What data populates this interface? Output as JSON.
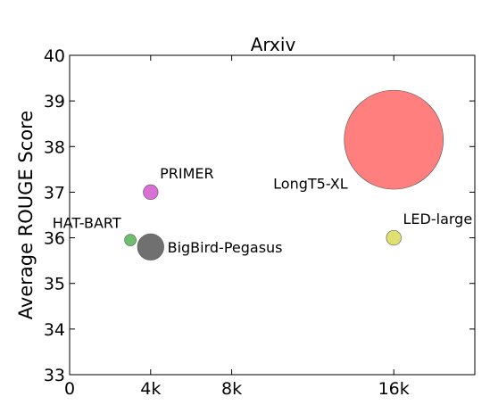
{
  "chart_data": {
    "type": "scatter",
    "title": "Arxiv",
    "xlabel": "",
    "ylabel": "Average ROUGE Score",
    "xlim": [
      0,
      20000
    ],
    "ylim": [
      33,
      40
    ],
    "x_ticks": [
      {
        "value": 0,
        "label": "0"
      },
      {
        "value": 4000,
        "label": "4k"
      },
      {
        "value": 8000,
        "label": "8k"
      },
      {
        "value": 16000,
        "label": "16k"
      }
    ],
    "y_ticks": [
      {
        "value": 33,
        "label": "33"
      },
      {
        "value": 34,
        "label": "34"
      },
      {
        "value": 35,
        "label": "35"
      },
      {
        "value": 36,
        "label": "36"
      },
      {
        "value": 37,
        "label": "37"
      },
      {
        "value": 38,
        "label": "38"
      },
      {
        "value": 39,
        "label": "39"
      },
      {
        "value": 40,
        "label": "40"
      }
    ],
    "grid": false,
    "legend": "none",
    "points": [
      {
        "label": "PRIMER",
        "x": 4000,
        "y": 37.0,
        "size": 0.45,
        "color": "#DA70D6",
        "label_pos": "above-right"
      },
      {
        "label": "HAT-BART",
        "x": 3000,
        "y": 35.95,
        "size": 0.35,
        "color": "#6DBF6D",
        "label_pos": "above-left"
      },
      {
        "label": "BigBird-Pegasus",
        "x": 4000,
        "y": 35.8,
        "size": 0.8,
        "color": "#707070",
        "label_pos": "right"
      },
      {
        "label": "LongT5-XL",
        "x": 16000,
        "y": 38.15,
        "size": 3.0,
        "color": "#FF7F7F",
        "label_pos": "left"
      },
      {
        "label": "LED-large",
        "x": 16000,
        "y": 36.0,
        "size": 0.45,
        "color": "#E0E070",
        "label_pos": "above-right"
      }
    ]
  }
}
